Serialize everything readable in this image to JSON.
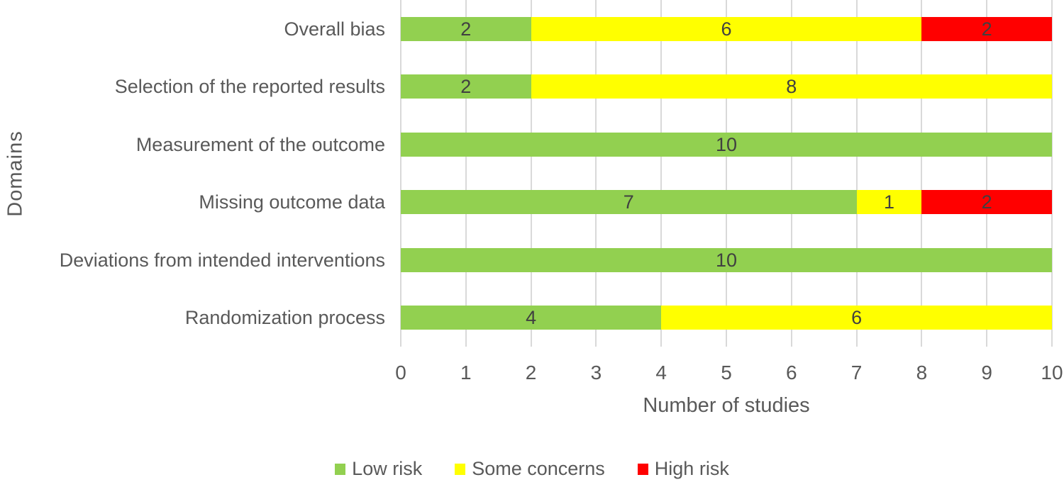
{
  "chart_data": {
    "type": "bar",
    "orientation": "horizontal",
    "stacked": true,
    "title": "",
    "xlabel": "Number of studies",
    "ylabel": "Domains",
    "xlim": [
      0,
      10
    ],
    "xticks": [
      0,
      1,
      2,
      3,
      4,
      5,
      6,
      7,
      8,
      9,
      10
    ],
    "grid": true,
    "data_labels": true,
    "legend_position": "bottom",
    "categories": [
      "Overall bias",
      "Selection of the reported results",
      "Measurement of the outcome",
      "Missing outcome data",
      "Deviations from intended interventions",
      "Randomization process"
    ],
    "series": [
      {
        "name": "Low risk",
        "color": "#92d050",
        "values": [
          2,
          2,
          10,
          7,
          10,
          4
        ]
      },
      {
        "name": "Some concerns",
        "color": "#ffff00",
        "values": [
          6,
          8,
          0,
          1,
          0,
          6
        ]
      },
      {
        "name": "High risk",
        "color": "#ff0000",
        "values": [
          2,
          0,
          0,
          2,
          0,
          0
        ]
      }
    ]
  },
  "colors": {
    "gridline": "#d9d9d9",
    "axis_text": "#595959",
    "data_label_text": "#404040",
    "background": "#ffffff"
  }
}
